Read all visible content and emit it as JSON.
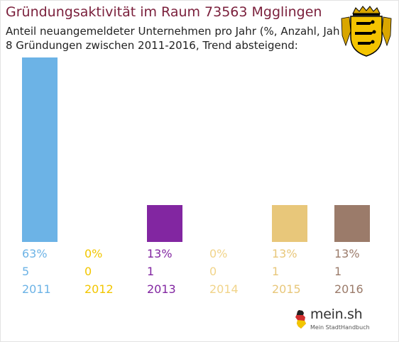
{
  "header": {
    "title": "Gründungsaktivität im Raum 73563 Mgglingen",
    "subtitle_line1": "Anteil neuangemeldeter Unternehmen pro Jahr (%, Anzahl, Jahr)",
    "subtitle_line2": "8 Gründungen zwischen 2011-2016, Trend absteigend:"
  },
  "emblem": {
    "icon": "baden-wuerttemberg-coat-of-arms-icon"
  },
  "logo": {
    "main": "mein.sh",
    "sub": "Mein StadtHandbuch",
    "icon": "germany-map-icon"
  },
  "chart_data": {
    "type": "bar",
    "title": "Gründungsaktivität im Raum 73563 Mgglingen",
    "categories": [
      "2011",
      "2012",
      "2013",
      "2014",
      "2015",
      "2016"
    ],
    "values": [
      5,
      0,
      1,
      0,
      1,
      1
    ],
    "percent_labels": [
      "63%",
      "0%",
      "13%",
      "0%",
      "13%",
      "13%"
    ],
    "count_labels": [
      "5",
      "0",
      "1",
      "0",
      "1",
      "1"
    ],
    "colors": [
      "#6cb3e6",
      "#f2c600",
      "#8226a1",
      "#f1d48a",
      "#e8c77a",
      "#9b7b6a"
    ],
    "ylim": [
      0,
      5
    ],
    "grid": false,
    "legend": "none"
  }
}
